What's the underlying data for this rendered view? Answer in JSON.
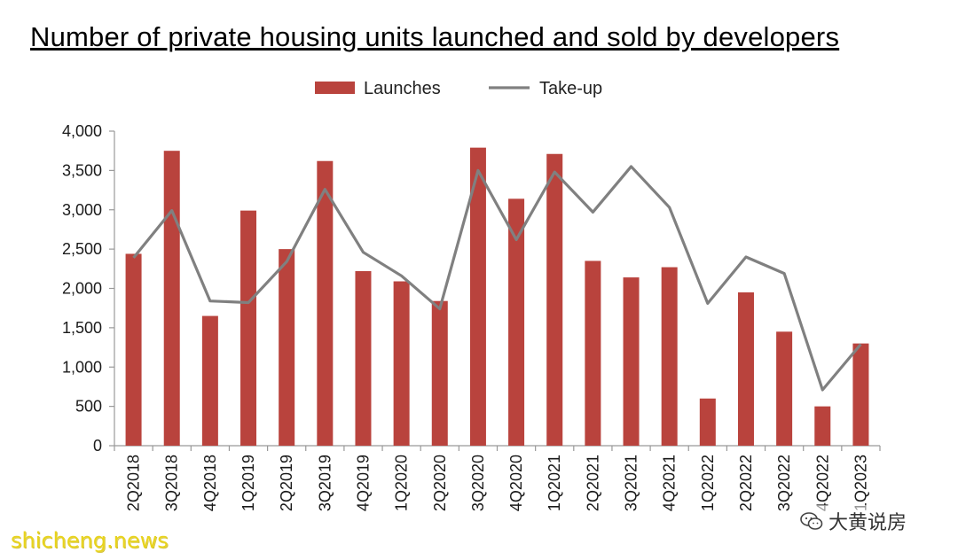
{
  "chart_data": {
    "type": "bar",
    "title": "Number of private housing units launched and sold by developers",
    "categories": [
      "2Q2018",
      "3Q2018",
      "4Q2018",
      "1Q2019",
      "2Q2019",
      "3Q2019",
      "4Q2019",
      "1Q2020",
      "2Q2020",
      "3Q2020",
      "4Q2020",
      "1Q2021",
      "2Q2021",
      "3Q2021",
      "4Q2021",
      "1Q2022",
      "2Q2022",
      "3Q2022",
      "4Q2022",
      "1Q2023"
    ],
    "series": [
      {
        "name": "Launches",
        "type": "bar",
        "color": "#b9433d",
        "values": [
          2440,
          3750,
          1650,
          2990,
          2500,
          3620,
          2220,
          2090,
          1840,
          3790,
          3140,
          3710,
          2350,
          2140,
          2270,
          600,
          1950,
          1450,
          500,
          1300
        ]
      },
      {
        "name": "Take-up",
        "type": "line",
        "color": "#808080",
        "values": [
          2390,
          2990,
          1840,
          1820,
          2340,
          3260,
          2460,
          2160,
          1740,
          3500,
          2620,
          3480,
          2970,
          3550,
          3030,
          1810,
          2400,
          2190,
          710,
          1290
        ]
      }
    ],
    "ylim": [
      0,
      4000
    ],
    "yticks": [
      "0",
      "500",
      "1,000",
      "1,500",
      "2,000",
      "2,500",
      "3,000",
      "3,500",
      "4,000"
    ],
    "ytick_values": [
      0,
      500,
      1000,
      1500,
      2000,
      2500,
      3000,
      3500,
      4000
    ],
    "legend_position": "top-center",
    "grid": false
  },
  "watermarks": {
    "left": "shicheng.news",
    "right": "大黄说房"
  }
}
